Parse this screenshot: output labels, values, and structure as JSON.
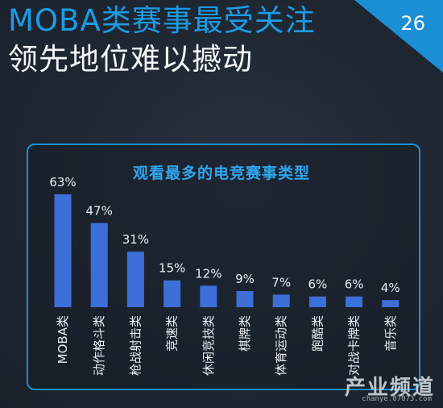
{
  "header": {
    "title": "MOBA类赛事最受关注",
    "subtitle": "领先地位难以撼动",
    "page_number": "26"
  },
  "colors": {
    "title": "#1b9ce4",
    "accent": "#1a8fd6",
    "bar": "#3d6fd8",
    "background": "#1f2733"
  },
  "watermark": {
    "text": "产业频道",
    "url": "chanye.07073.com"
  },
  "chart_data": {
    "type": "bar",
    "title": "观看最多的电竞赛事类型",
    "categories": [
      "MOBA类",
      "动作格斗类",
      "枪战射击类",
      "竞速类",
      "休闲竞技类",
      "棋牌类",
      "体育运动类",
      "跑酷类",
      "对战卡牌类",
      "音乐类"
    ],
    "values": [
      63,
      47,
      31,
      15,
      12,
      9,
      7,
      6,
      6,
      4
    ],
    "value_labels": [
      "63%",
      "47%",
      "31%",
      "15%",
      "12%",
      "9%",
      "7%",
      "6%",
      "6%",
      "4%"
    ],
    "ylim": [
      0,
      63
    ],
    "grid": false,
    "legend": "none"
  }
}
